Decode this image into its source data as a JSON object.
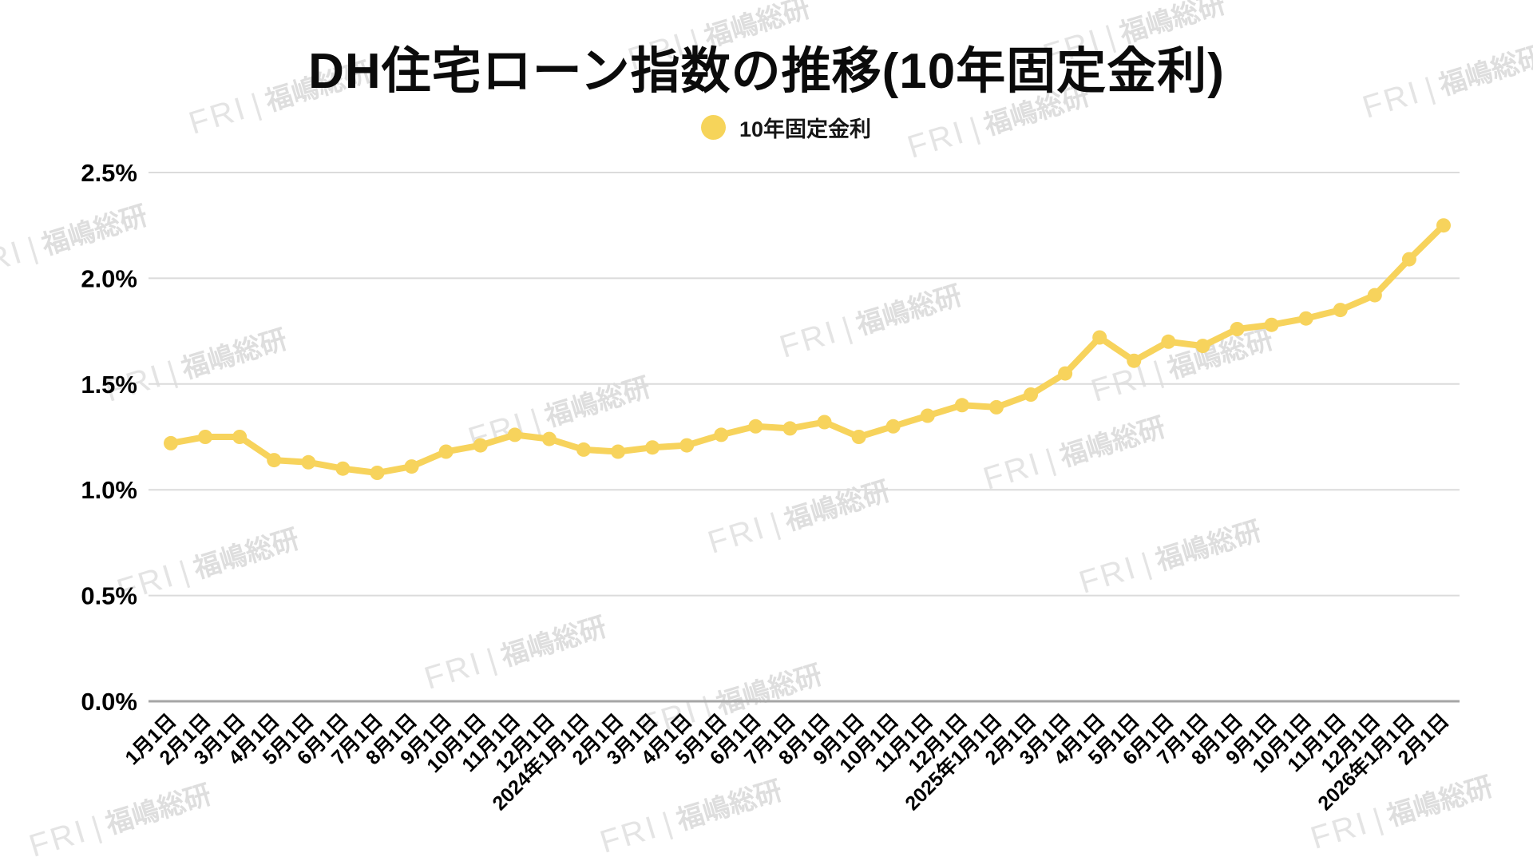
{
  "title": "DH住宅ローン指数の推移(10年固定金利)",
  "legend": {
    "label": "10年固定金利"
  },
  "watermark": {
    "logo": "FRI",
    "separator": "|",
    "text": "福嶋総研"
  },
  "colors": {
    "line": "#F7D35C",
    "point": "#F7D35C",
    "legend_dot": "#F6D45A",
    "grid": "#DBDBDB",
    "zero_axis": "#A6A6A6",
    "axis_text": "#000000"
  },
  "chart_data": {
    "type": "line",
    "title": "DH住宅ローン指数の推移(10年固定金利)",
    "series_name": "10年固定金利",
    "legend_position": "top",
    "grid": true,
    "unit": "%",
    "ylim": [
      0,
      2.5
    ],
    "ytick_step": 0.5,
    "ytick_labels": [
      "0.0%",
      "0.5%",
      "1.0%",
      "1.5%",
      "2.0%",
      "2.5%"
    ],
    "categories": [
      "1月1日",
      "2月1日",
      "3月1日",
      "4月1日",
      "5月1日",
      "6月1日",
      "7月1日",
      "8月1日",
      "9月1日",
      "10月1日",
      "11月1日",
      "12月1日",
      "2024年1月1日",
      "2月1日",
      "3月1日",
      "4月1日",
      "5月1日",
      "6月1日",
      "7月1日",
      "8月1日",
      "9月1日",
      "10月1日",
      "11月1日",
      "12月1日",
      "2025年1月1日",
      "2月1日",
      "3月1日",
      "4月1日",
      "5月1日",
      "6月1日",
      "7月1日",
      "8月1日",
      "9月1日",
      "10月1日",
      "11月1日",
      "12月1日",
      "2026年1月1日",
      "2月1日"
    ],
    "values": [
      1.22,
      1.25,
      1.25,
      1.14,
      1.13,
      1.1,
      1.08,
      1.11,
      1.18,
      1.21,
      1.26,
      1.24,
      1.19,
      1.18,
      1.2,
      1.21,
      1.26,
      1.3,
      1.29,
      1.32,
      1.25,
      1.3,
      1.35,
      1.4,
      1.39,
      1.45,
      1.55,
      1.72,
      1.61,
      1.7,
      1.68,
      1.76,
      1.78,
      1.81,
      1.85,
      1.92,
      2.09,
      2.25
    ]
  }
}
